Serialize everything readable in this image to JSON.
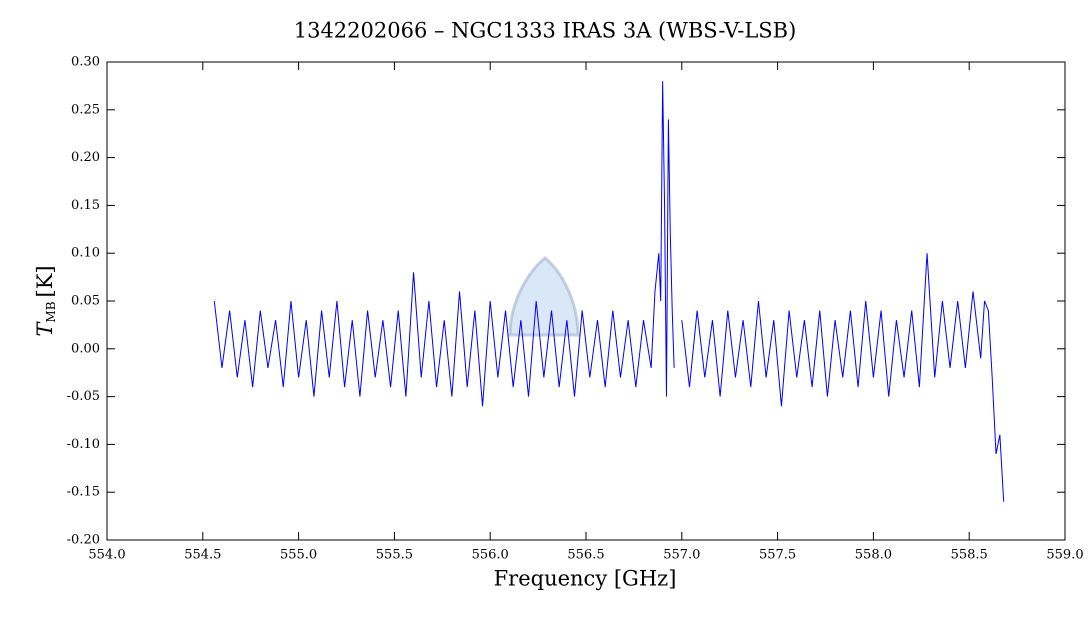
{
  "chart_data": {
    "type": "line",
    "title": "1342202066 – NGC1333 IRAS 3A (WBS-V-LSB)",
    "x_label": "Frequency [GHz]",
    "y_label": {
      "symbol": "T",
      "subscript": "MB",
      "unit": "[K]"
    },
    "color": "#0000ff",
    "xlim": [
      554.0,
      559.0
    ],
    "xticks": [
      {
        "value": 554,
        "label": "554.0"
      },
      {
        "value": 554.5,
        "label": "554.5"
      },
      {
        "value": 555,
        "label": "555.0"
      },
      {
        "value": 555.5,
        "label": "555.5"
      },
      {
        "value": 556,
        "label": "556.0"
      },
      {
        "value": 556.5,
        "label": "556.5"
      },
      {
        "value": 557,
        "label": "557.0"
      },
      {
        "value": 557.5,
        "label": "557.5"
      },
      {
        "value": 558,
        "label": "558.0"
      },
      {
        "value": 558.5,
        "label": "558.5"
      },
      {
        "value": 559,
        "label": "559.0"
      }
    ],
    "ylim": [
      -0.2,
      0.3
    ],
    "yticks": [
      {
        "value": -0.2,
        "label": "-0.20"
      },
      {
        "value": -0.15,
        "label": "-0.15"
      },
      {
        "value": -0.1,
        "label": "-0.10"
      },
      {
        "value": -0.05,
        "label": "-0.05"
      },
      {
        "value": 0,
        "label": "0.00"
      },
      {
        "value": 0.05,
        "label": "0.05"
      },
      {
        "value": 0.1,
        "label": "0.10"
      },
      {
        "value": 0.15,
        "label": "0.15"
      },
      {
        "value": 0.2,
        "label": "0.20"
      },
      {
        "value": 0.25,
        "label": "0.25"
      },
      {
        "value": 0.3,
        "label": "0.30"
      }
    ],
    "x": [
      554.56,
      554.6,
      554.64,
      554.68,
      554.72,
      554.76,
      554.8,
      554.84,
      554.88,
      554.92,
      554.96,
      555,
      555.04,
      555.08,
      555.12,
      555.16,
      555.2,
      555.24,
      555.28,
      555.32,
      555.36,
      555.4,
      555.44,
      555.48,
      555.52,
      555.56,
      555.6,
      555.64,
      555.68,
      555.72,
      555.76,
      555.8,
      555.84,
      555.88,
      555.92,
      555.96,
      556,
      556.04,
      556.08,
      556.12,
      556.16,
      556.2,
      556.24,
      556.28,
      556.32,
      556.36,
      556.4,
      556.44,
      556.48,
      556.52,
      556.56,
      556.6,
      556.64,
      556.68,
      556.72,
      556.76,
      556.8,
      556.84,
      556.86,
      556.88,
      556.89,
      556.9,
      556.91,
      556.92,
      556.93,
      556.94,
      556.95,
      556.96,
      556.98,
      557,
      557.04,
      557.08,
      557.12,
      557.16,
      557.2,
      557.24,
      557.28,
      557.32,
      557.36,
      557.4,
      557.44,
      557.48,
      557.52,
      557.56,
      557.6,
      557.64,
      557.68,
      557.72,
      557.76,
      557.8,
      557.84,
      557.88,
      557.92,
      557.96,
      558,
      558.04,
      558.08,
      558.12,
      558.16,
      558.2,
      558.24,
      558.28,
      558.32,
      558.36,
      558.4,
      558.44,
      558.48,
      558.52,
      558.56,
      558.58,
      558.6,
      558.62,
      558.64,
      558.66,
      558.68
    ],
    "values": [
      0.05,
      -0.02,
      0.04,
      -0.03,
      0.03,
      -0.04,
      0.04,
      -0.02,
      0.03,
      -0.04,
      0.05,
      -0.03,
      0.03,
      -0.05,
      0.04,
      -0.03,
      0.05,
      -0.04,
      0.03,
      -0.05,
      0.04,
      -0.03,
      0.03,
      -0.04,
      0.04,
      -0.05,
      0.08,
      -0.03,
      0.05,
      -0.04,
      0.03,
      -0.05,
      0.06,
      -0.04,
      0.04,
      -0.06,
      0.05,
      -0.03,
      0.04,
      -0.04,
      0.03,
      -0.05,
      0.05,
      -0.03,
      0.04,
      -0.04,
      0.03,
      -0.05,
      0.04,
      -0.03,
      0.03,
      -0.04,
      0.04,
      -0.03,
      0.03,
      -0.04,
      0.03,
      -0.02,
      0.06,
      0.1,
      0.05,
      0.28,
      0.15,
      -0.05,
      0.24,
      0.12,
      0.04,
      -0.02,
      null,
      0.03,
      -0.04,
      0.04,
      -0.03,
      0.03,
      -0.05,
      0.04,
      -0.03,
      0.03,
      -0.04,
      0.05,
      -0.03,
      0.03,
      -0.06,
      0.04,
      -0.03,
      0.03,
      -0.04,
      0.04,
      -0.05,
      0.03,
      -0.03,
      0.04,
      -0.04,
      0.05,
      -0.03,
      0.04,
      -0.05,
      0.03,
      -0.03,
      0.04,
      -0.04,
      0.1,
      -0.03,
      0.05,
      -0.02,
      0.05,
      -0.02,
      0.06,
      -0.01,
      0.05,
      0.04,
      -0.03,
      -0.11,
      -0.09,
      -0.16
    ]
  }
}
